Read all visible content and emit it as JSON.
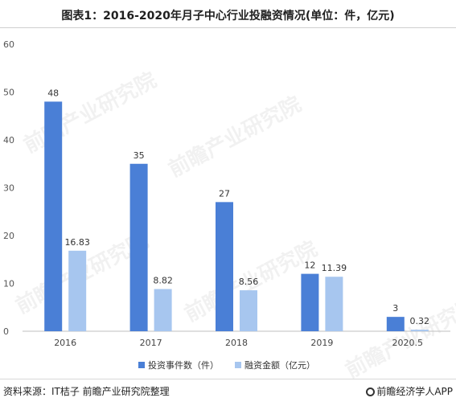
{
  "header": {
    "title": "图表1：2016-2020年月子中心行业投融资情况(单位：件，亿元)"
  },
  "chart_data": {
    "type": "bar",
    "title": "图表1：2016-2020年月子中心行业投融资情况(单位：件，亿元)",
    "xlabel": "",
    "ylabel": "",
    "ylim": [
      0,
      60
    ],
    "yticks": [
      "0",
      "10",
      "20",
      "30",
      "40",
      "50",
      "60"
    ],
    "categories": [
      "2016",
      "2017",
      "2018",
      "2019",
      "2020.5"
    ],
    "series": [
      {
        "name": "投资事件数（件）",
        "color": "#4a7fd6",
        "values": [
          48,
          35,
          27,
          12,
          3
        ],
        "labels": [
          "48",
          "35",
          "27",
          "12",
          "3"
        ]
      },
      {
        "name": "融资金额（亿元）",
        "color": "#a7c6ef",
        "values": [
          16.83,
          8.82,
          8.56,
          11.39,
          0.32
        ],
        "labels": [
          "16.83",
          "8.82",
          "8.56",
          "11.39",
          "0.32"
        ]
      }
    ],
    "grid": false,
    "legend_position": "bottom"
  },
  "footer": {
    "source": "资料来源：IT桔子 前瞻产业研究院整理",
    "brand": "前瞻经济学人APP"
  },
  "watermark": {
    "text": "前瞻产业研究院"
  }
}
